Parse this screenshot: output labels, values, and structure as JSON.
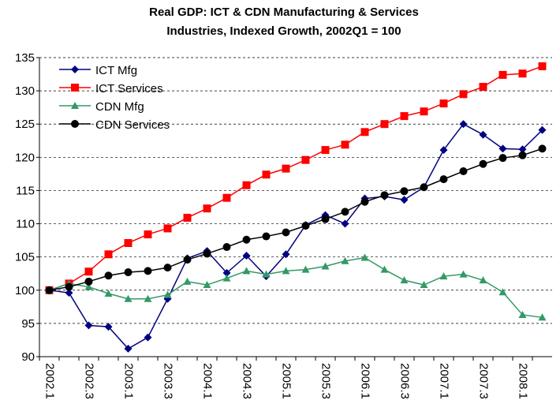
{
  "chart_data": {
    "type": "line",
    "title": [
      "Real GDP: ICT & CDN Manufacturing & Services",
      "Industries, Indexed Growth, 2002Q1 = 100"
    ],
    "categories": [
      "2002.1",
      null,
      "2002.3",
      null,
      "2003.1",
      null,
      "2003.3",
      null,
      "2004.1",
      null,
      "2004.3",
      null,
      "2005.1",
      null,
      "2005.3",
      null,
      "2006.1",
      null,
      "2006.3",
      null,
      "2007.1",
      null,
      "2007.3",
      null,
      "2008.1",
      null
    ],
    "series": [
      {
        "name": "ICT Mfg",
        "color": "#000080",
        "marker": "diamond",
        "values": [
          100,
          99.6,
          94.7,
          94.5,
          91.2,
          92.9,
          98.7,
          104.8,
          105.9,
          102.6,
          105.2,
          102.1,
          105.4,
          109.8,
          111.3,
          110.0,
          113.8,
          114.1,
          113.6,
          115.5,
          121.1,
          125.0,
          123.4,
          121.3,
          121.2,
          124.1
        ]
      },
      {
        "name": "ICT Services",
        "color": "#ff0000",
        "marker": "square",
        "values": [
          100,
          101.0,
          102.8,
          105.4,
          107.1,
          108.4,
          109.3,
          110.9,
          112.3,
          113.9,
          115.8,
          117.4,
          118.3,
          119.6,
          121.1,
          121.9,
          123.8,
          125.0,
          126.2,
          126.9,
          128.1,
          129.5,
          130.6,
          132.4,
          132.6,
          133.7
        ]
      },
      {
        "name": "CDN Mfg",
        "color": "#339966",
        "marker": "triangle",
        "values": [
          100,
          101.0,
          100.5,
          99.5,
          98.7,
          98.7,
          99.3,
          101.3,
          100.8,
          101.8,
          102.9,
          102.4,
          102.9,
          103.1,
          103.6,
          104.4,
          104.9,
          103.1,
          101.5,
          100.8,
          102.1,
          102.4,
          101.5,
          99.7,
          96.3,
          95.9
        ]
      },
      {
        "name": "CDN Services",
        "color": "#000000",
        "marker": "circle",
        "values": [
          100,
          100.5,
          101.3,
          102.2,
          102.7,
          102.9,
          103.4,
          104.6,
          105.5,
          106.5,
          107.6,
          108.1,
          108.7,
          109.7,
          110.7,
          111.8,
          113.3,
          114.3,
          114.9,
          115.5,
          116.7,
          117.9,
          119.0,
          119.9,
          120.3,
          121.3
        ]
      }
    ],
    "ylim": [
      90,
      135
    ],
    "yticks": [
      90,
      95,
      100,
      105,
      110,
      115,
      120,
      125,
      130,
      135
    ],
    "grid": true,
    "legend": "upper-left"
  }
}
